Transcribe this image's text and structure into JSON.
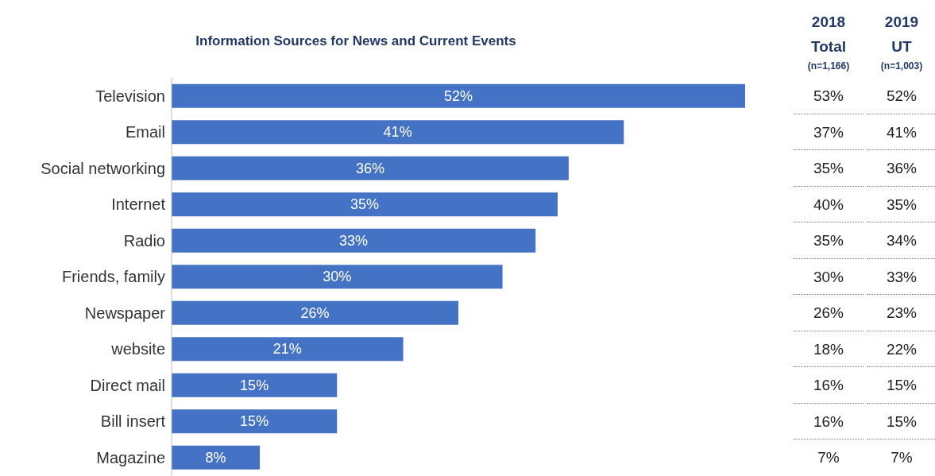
{
  "chart_data": {
    "type": "bar",
    "orientation": "horizontal",
    "title": "Information Sources for News and Current Events",
    "categories": [
      "Television",
      "Email",
      "Social networking",
      "Internet",
      "Radio",
      "Friends, family",
      "Newspaper",
      "website",
      "Direct mail",
      "Bill insert",
      "Magazine"
    ],
    "series": [
      {
        "color": "#4472c4",
        "values": [
          52,
          41,
          36,
          35,
          33,
          30,
          26,
          21,
          15,
          15,
          8
        ],
        "value_labels": [
          "52%",
          "41%",
          "36%",
          "35%",
          "33%",
          "30%",
          "26%",
          "21%",
          "15%",
          "15%",
          "8%"
        ]
      }
    ],
    "annotations": [
      "2018 Total",
      "(n=1,166)",
      "53%",
      "37%",
      "35%",
      "40%",
      "35%",
      "30%",
      "26%",
      "18%",
      "16%",
      "16%",
      "7%",
      "2019 UT",
      "(n=1,003)",
      "52%",
      "41%",
      "36%",
      "35%",
      "34%",
      "33%",
      "23%",
      "22%",
      "15%",
      "15%",
      "7%"
    ]
  }
}
